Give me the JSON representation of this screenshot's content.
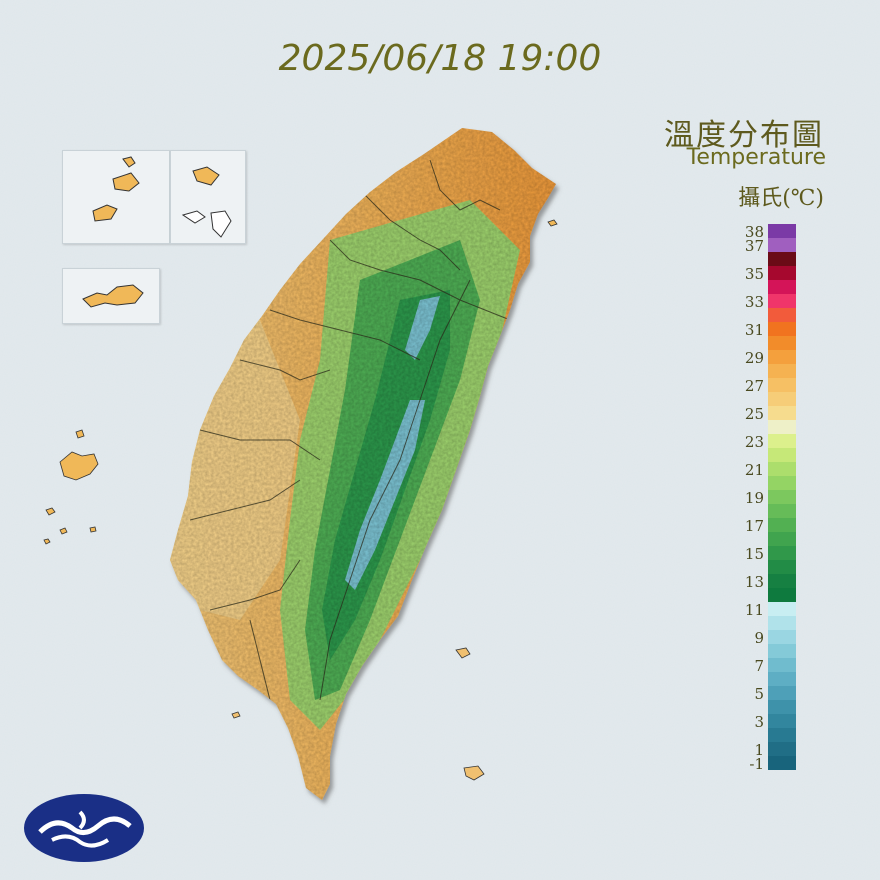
{
  "timestamp": "2025/06/18 19:00",
  "legend": {
    "title": "溫度分布圖",
    "subtitle": "Temperature",
    "unit": "攝氏(℃)",
    "tick_labels": [
      "38",
      "37",
      "35",
      "33",
      "31",
      "29",
      "27",
      "25",
      "23",
      "21",
      "19",
      "17",
      "15",
      "13",
      "11",
      "9",
      "7",
      "5",
      "3",
      "1",
      "-1"
    ],
    "color_stops": [
      {
        "value": 38,
        "color": "#7b3aa6"
      },
      {
        "value": 37,
        "color": "#a05fbf"
      },
      {
        "value": 36,
        "color": "#6b0b16"
      },
      {
        "value": 35,
        "color": "#a6082e"
      },
      {
        "value": 34,
        "color": "#d41458"
      },
      {
        "value": 33,
        "color": "#f0356a"
      },
      {
        "value": 32,
        "color": "#f25b3b"
      },
      {
        "value": 31,
        "color": "#f1731f"
      },
      {
        "value": 30,
        "color": "#f28c2a"
      },
      {
        "value": 29,
        "color": "#f4a03d"
      },
      {
        "value": 28,
        "color": "#f5b251"
      },
      {
        "value": 27,
        "color": "#f6c064"
      },
      {
        "value": 26,
        "color": "#f6cd78"
      },
      {
        "value": 25,
        "color": "#f6dc8e"
      },
      {
        "value": 24,
        "color": "#eef0c8"
      },
      {
        "value": 23,
        "color": "#dcf08c"
      },
      {
        "value": 22,
        "color": "#c6e878"
      },
      {
        "value": 21,
        "color": "#acde6c"
      },
      {
        "value": 20,
        "color": "#94d464"
      },
      {
        "value": 19,
        "color": "#7cc85e"
      },
      {
        "value": 18,
        "color": "#66bc58"
      },
      {
        "value": 17,
        "color": "#52b052"
      },
      {
        "value": 16,
        "color": "#40a44e"
      },
      {
        "value": 15,
        "color": "#30984a"
      },
      {
        "value": 14,
        "color": "#228c46"
      },
      {
        "value": 13,
        "color": "#168042"
      },
      {
        "value": 12,
        "color": "#0e7a3e"
      },
      {
        "value": 11,
        "color": "#c8eef2"
      },
      {
        "value": 10,
        "color": "#b0e2ea"
      },
      {
        "value": 9,
        "color": "#9ad6e2"
      },
      {
        "value": 8,
        "color": "#84cad8"
      },
      {
        "value": 7,
        "color": "#70bcce"
      },
      {
        "value": 6,
        "color": "#5eaec4"
      },
      {
        "value": 5,
        "color": "#4ea0b8"
      },
      {
        "value": 4,
        "color": "#3e92aa"
      },
      {
        "value": 3,
        "color": "#32869e"
      },
      {
        "value": 2,
        "color": "#287a92"
      },
      {
        "value": 1,
        "color": "#206e86"
      },
      {
        "value": 0,
        "color": "#18647c"
      }
    ]
  },
  "map": {
    "water_color": "#dfe6ea",
    "lowland_color": "#f2a64a",
    "plain_color": "#f6cf7c",
    "hill_color": "#6cc05a",
    "mountain_color": "#2e9a4a",
    "peak_color": "#6fbcd0",
    "inset_land_color": "#f0b858"
  }
}
